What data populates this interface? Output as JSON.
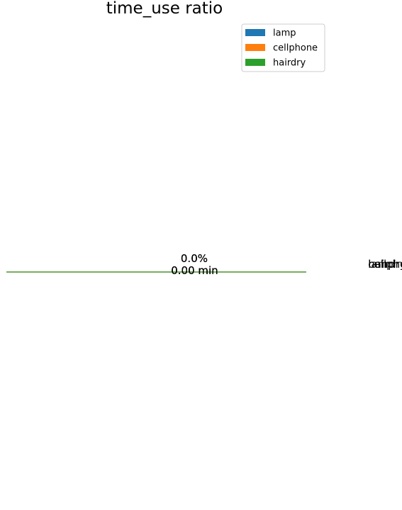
{
  "chart_data": {
    "type": "pie",
    "title": "time_use ratio",
    "categories": [
      "lamp",
      "cellphone",
      "hairdry"
    ],
    "values": [
      0,
      0,
      0
    ],
    "colors": [
      "#1f77b4",
      "#ff7f0e",
      "#2ca02c"
    ],
    "percent_labels": [
      "0.0%",
      "0.0%",
      "0.0%"
    ],
    "value_labels": [
      "0.00 min",
      "0.00 min",
      "0.00 min"
    ],
    "legend": {
      "position": "upper-right",
      "entries": [
        "lamp",
        "cellphone",
        "hairdry"
      ]
    }
  }
}
